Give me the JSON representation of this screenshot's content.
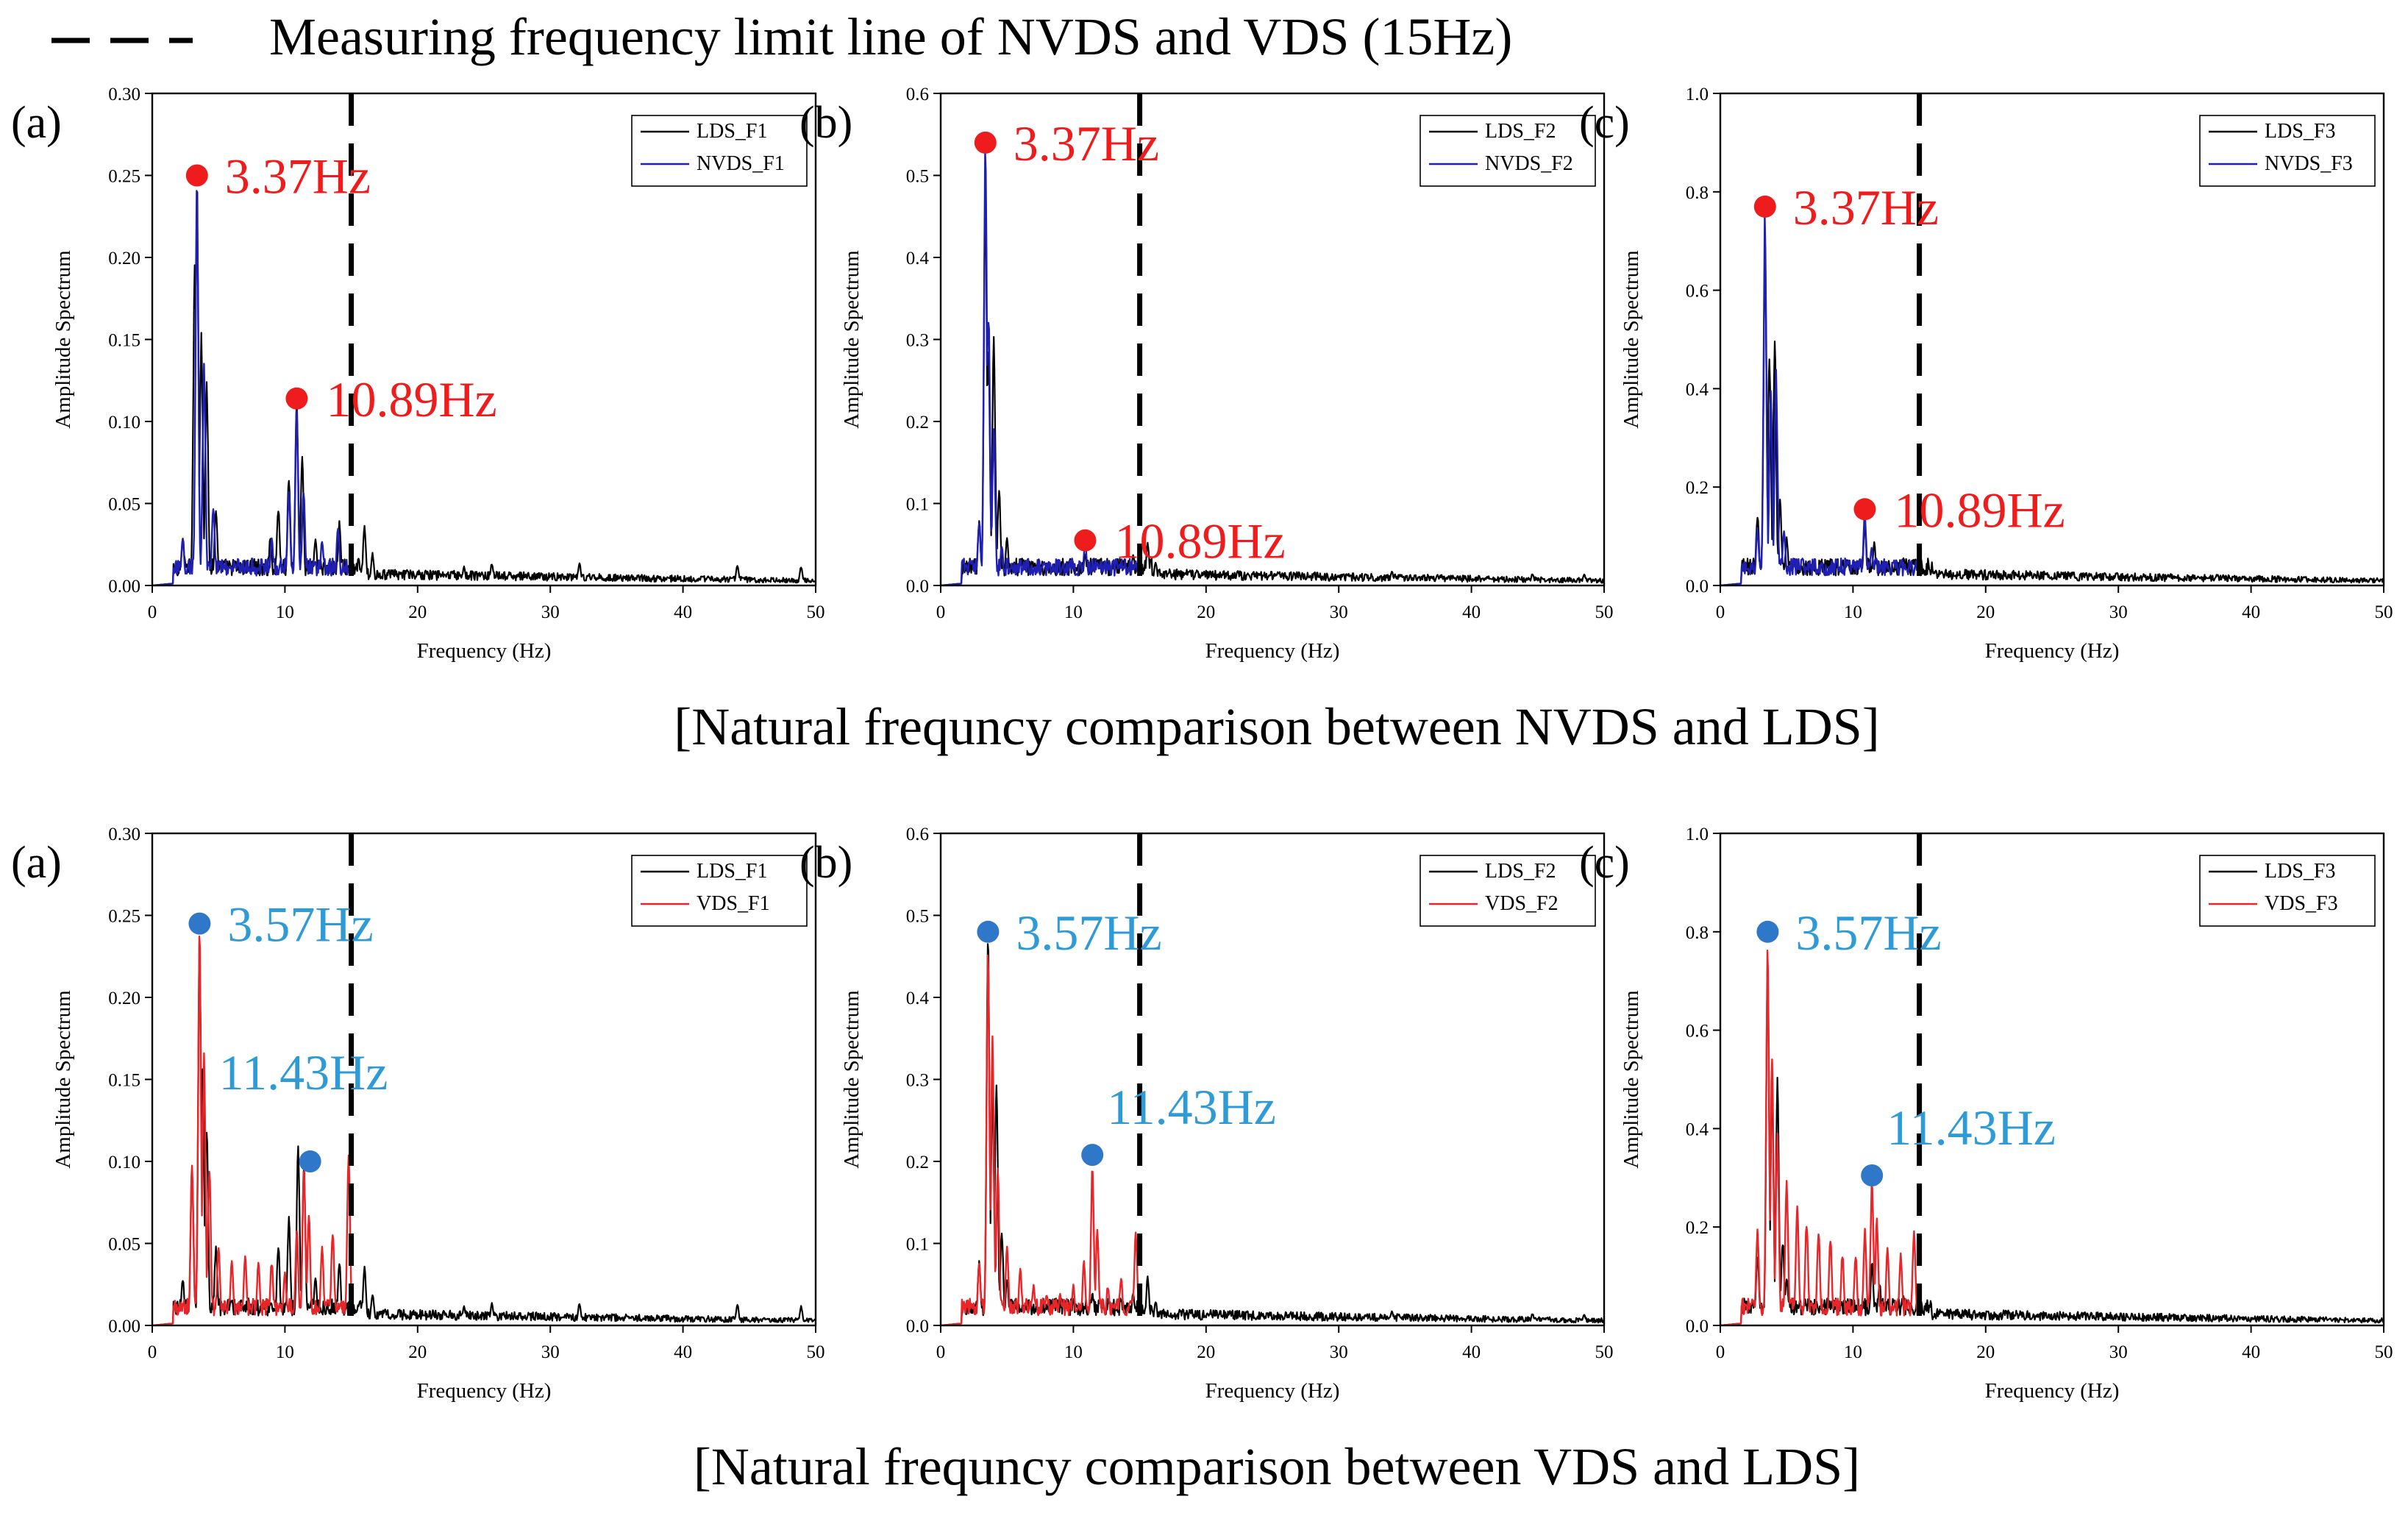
{
  "figure": {
    "legend_line_label": "Measuring frequency limit line of NVDS and VDS (15Hz)",
    "row_titles": [
      "[Natural frequncy comparison between NVDS and LDS]",
      "[Natural frequncy comparison between VDS and LDS]"
    ],
    "limit_frequency_hz": 15,
    "colors": {
      "lds": "#000000",
      "nvds": "#1f1fb4",
      "vds": "#e8262a",
      "marker_red": "#ee1c1c",
      "marker_blue": "#2f77c8",
      "text_blue": "#2e9bd6"
    }
  },
  "chart_data": [
    {
      "type": "line",
      "panel": "(a)",
      "row": 0,
      "xlabel": "Frequency (Hz)",
      "ylabel": "Amplitude Spectrum",
      "xlim": [
        0,
        50
      ],
      "ylim": [
        0,
        0.3
      ],
      "xticks": [
        "0",
        "10",
        "20",
        "30",
        "40",
        "50"
      ],
      "yticks": [
        "0.00",
        "0.05",
        "0.10",
        "0.15",
        "0.20",
        "0.25",
        "0.30"
      ],
      "series": [
        {
          "name": "LDS_F1",
          "color": "#000000",
          "extent": 50,
          "peaks": [
            [
              2.3,
              0.03
            ],
            [
              3.2,
              0.2
            ],
            [
              3.37,
              0.25
            ],
            [
              3.7,
              0.16
            ],
            [
              4.1,
              0.13
            ],
            [
              4.8,
              0.05
            ],
            [
              8.9,
              0.03
            ],
            [
              9.5,
              0.05
            ],
            [
              10.3,
              0.07
            ],
            [
              10.89,
              0.115
            ],
            [
              11.3,
              0.08
            ],
            [
              12.3,
              0.03
            ],
            [
              14.1,
              0.04
            ],
            [
              16.0,
              0.038
            ],
            [
              16.6,
              0.02
            ],
            [
              23.5,
              0.012
            ],
            [
              25.6,
              0.014
            ],
            [
              32.2,
              0.014
            ],
            [
              44.1,
              0.013
            ],
            [
              48.9,
              0.012
            ]
          ]
        },
        {
          "name": "NVDS_F1",
          "color": "#1f1fb4",
          "extent": 15,
          "peaks": [
            [
              2.3,
              0.03
            ],
            [
              3.37,
              0.245
            ],
            [
              3.9,
              0.14
            ],
            [
              4.6,
              0.05
            ],
            [
              9.0,
              0.03
            ],
            [
              10.3,
              0.06
            ],
            [
              10.89,
              0.11
            ],
            [
              11.4,
              0.06
            ],
            [
              12.8,
              0.028
            ],
            [
              14.0,
              0.038
            ]
          ]
        }
      ],
      "annotations": [
        {
          "text": "3.37Hz",
          "x": 3.37,
          "y": 0.25
        },
        {
          "text": "10.89Hz",
          "x": 10.89,
          "y": 0.114
        }
      ]
    },
    {
      "type": "line",
      "panel": "(b)",
      "row": 0,
      "xlabel": "Frequency (Hz)",
      "ylabel": "Amplitude Spectrum",
      "xlim": [
        0,
        50
      ],
      "ylim": [
        0,
        0.6
      ],
      "xticks": [
        "0",
        "10",
        "20",
        "30",
        "40",
        "50"
      ],
      "yticks": [
        "0.0",
        "0.1",
        "0.2",
        "0.3",
        "0.4",
        "0.5",
        "0.6"
      ],
      "series": [
        {
          "name": "LDS_F2",
          "color": "#000000",
          "extent": 50,
          "peaks": [
            [
              2.9,
              0.08
            ],
            [
              3.37,
              0.5
            ],
            [
              3.6,
              0.3
            ],
            [
              4.0,
              0.32
            ],
            [
              4.4,
              0.12
            ],
            [
              5.0,
              0.06
            ],
            [
              10.89,
              0.04
            ],
            [
              12.0,
              0.035
            ],
            [
              14.5,
              0.04
            ],
            [
              15.6,
              0.055
            ],
            [
              16.2,
              0.03
            ],
            [
              20.3,
              0.015
            ],
            [
              34.0,
              0.018
            ],
            [
              44.6,
              0.015
            ],
            [
              48.5,
              0.014
            ]
          ]
        },
        {
          "name": "NVDS_F2",
          "color": "#1f1fb4",
          "extent": 15,
          "peaks": [
            [
              2.9,
              0.08
            ],
            [
              3.37,
              0.54
            ],
            [
              3.6,
              0.35
            ],
            [
              4.0,
              0.2
            ],
            [
              4.6,
              0.05
            ],
            [
              10.89,
              0.055
            ],
            [
              11.8,
              0.03
            ],
            [
              13.5,
              0.025
            ]
          ]
        }
      ],
      "annotations": [
        {
          "text": "3.37Hz",
          "x": 3.37,
          "y": 0.54
        },
        {
          "text": "10.89Hz",
          "x": 10.89,
          "y": 0.055
        }
      ]
    },
    {
      "type": "line",
      "panel": "(c)",
      "row": 0,
      "xlabel": "Frequency (Hz)",
      "ylabel": "Amplitude Spectrum",
      "xlim": [
        0,
        50
      ],
      "ylim": [
        0,
        1.0
      ],
      "xticks": [
        "0",
        "10",
        "20",
        "30",
        "40",
        "50"
      ],
      "yticks": [
        "0.0",
        "0.2",
        "0.4",
        "0.6",
        "0.8",
        "1.0"
      ],
      "series": [
        {
          "name": "LDS_F3",
          "color": "#000000",
          "extent": 50,
          "peaks": [
            [
              2.8,
              0.15
            ],
            [
              3.37,
              0.7
            ],
            [
              3.7,
              0.5
            ],
            [
              4.1,
              0.52
            ],
            [
              4.5,
              0.18
            ],
            [
              5.0,
              0.1
            ],
            [
              10.89,
              0.13
            ],
            [
              11.6,
              0.09
            ],
            [
              13.8,
              0.06
            ],
            [
              16.7,
              0.03
            ],
            [
              22.7,
              0.02
            ],
            [
              31.0,
              0.02
            ],
            [
              36.0,
              0.02
            ],
            [
              44.0,
              0.018
            ],
            [
              49.0,
              0.015
            ]
          ]
        },
        {
          "name": "NVDS_F3",
          "color": "#1f1fb4",
          "extent": 15,
          "peaks": [
            [
              2.8,
              0.12
            ],
            [
              3.37,
              0.77
            ],
            [
              3.8,
              0.4
            ],
            [
              4.2,
              0.45
            ],
            [
              4.8,
              0.12
            ],
            [
              10.89,
              0.15
            ],
            [
              11.4,
              0.08
            ],
            [
              13.6,
              0.05
            ]
          ]
        }
      ],
      "annotations": [
        {
          "text": "3.37Hz",
          "x": 3.37,
          "y": 0.77
        },
        {
          "text": "10.89Hz",
          "x": 10.89,
          "y": 0.155
        }
      ]
    },
    {
      "type": "line",
      "panel": "(a)",
      "row": 1,
      "xlabel": "Frequency (Hz)",
      "ylabel": "Amplitude Spectrum",
      "xlim": [
        0,
        50
      ],
      "ylim": [
        0,
        0.3
      ],
      "xticks": [
        "0",
        "10",
        "20",
        "30",
        "40",
        "50"
      ],
      "yticks": [
        "0.00",
        "0.05",
        "0.10",
        "0.15",
        "0.20",
        "0.25",
        "0.30"
      ],
      "series": [
        {
          "name": "LDS_F1",
          "color": "#000000",
          "extent": 50,
          "peaks": [
            [
              2.3,
              0.03
            ],
            [
              3.0,
              0.1
            ],
            [
              3.57,
              0.24
            ],
            [
              3.8,
              0.16
            ],
            [
              4.1,
              0.13
            ],
            [
              4.8,
              0.05
            ],
            [
              9.5,
              0.05
            ],
            [
              10.3,
              0.07
            ],
            [
              11.0,
              0.115
            ],
            [
              11.43,
              0.1
            ],
            [
              12.3,
              0.03
            ],
            [
              14.1,
              0.04
            ],
            [
              16.0,
              0.038
            ],
            [
              16.6,
              0.02
            ],
            [
              23.5,
              0.012
            ],
            [
              25.6,
              0.014
            ],
            [
              32.2,
              0.014
            ],
            [
              44.1,
              0.013
            ],
            [
              48.9,
              0.012
            ]
          ]
        },
        {
          "name": "VDS_F1",
          "color": "#e8262a",
          "extent": 15,
          "peaks": [
            [
              3.0,
              0.1
            ],
            [
              3.57,
              0.245
            ],
            [
              3.9,
              0.17
            ],
            [
              4.3,
              0.1
            ],
            [
              5.0,
              0.05
            ],
            [
              6.0,
              0.04
            ],
            [
              7.0,
              0.045
            ],
            [
              8.0,
              0.04
            ],
            [
              9.0,
              0.04
            ],
            [
              10.0,
              0.035
            ],
            [
              10.9,
              0.06
            ],
            [
              11.43,
              0.1
            ],
            [
              11.8,
              0.07
            ],
            [
              12.8,
              0.05
            ],
            [
              13.6,
              0.06
            ],
            [
              14.8,
              0.105
            ]
          ]
        }
      ],
      "annotations": [
        {
          "text": "3.57Hz",
          "x": 3.57,
          "y": 0.245
        },
        {
          "text": "11.43Hz",
          "x": 11.9,
          "y": 0.1
        }
      ]
    },
    {
      "type": "line",
      "panel": "(b)",
      "row": 1,
      "xlabel": "Frequency (Hz)",
      "ylabel": "Amplitude Spectrum",
      "xlim": [
        0,
        50
      ],
      "ylim": [
        0,
        0.6
      ],
      "xticks": [
        "0",
        "10",
        "20",
        "30",
        "40",
        "50"
      ],
      "yticks": [
        "0.0",
        "0.1",
        "0.2",
        "0.3",
        "0.4",
        "0.5",
        "0.6"
      ],
      "series": [
        {
          "name": "LDS_F2",
          "color": "#000000",
          "extent": 50,
          "peaks": [
            [
              2.9,
              0.08
            ],
            [
              3.57,
              0.48
            ],
            [
              3.9,
              0.3
            ],
            [
              4.2,
              0.32
            ],
            [
              4.6,
              0.12
            ],
            [
              5.0,
              0.06
            ],
            [
              11.43,
              0.04
            ],
            [
              12.0,
              0.035
            ],
            [
              14.5,
              0.04
            ],
            [
              15.6,
              0.06
            ],
            [
              16.2,
              0.03
            ],
            [
              20.3,
              0.015
            ],
            [
              34.0,
              0.018
            ],
            [
              44.6,
              0.015
            ],
            [
              48.5,
              0.014
            ]
          ]
        },
        {
          "name": "VDS_F2",
          "color": "#e8262a",
          "extent": 15,
          "peaks": [
            [
              2.9,
              0.08
            ],
            [
              3.57,
              0.47
            ],
            [
              3.9,
              0.36
            ],
            [
              4.3,
              0.2
            ],
            [
              5.0,
              0.1
            ],
            [
              6.0,
              0.07
            ],
            [
              7.0,
              0.05
            ],
            [
              8.0,
              0.04
            ],
            [
              9.0,
              0.04
            ],
            [
              10.0,
              0.05
            ],
            [
              10.8,
              0.08
            ],
            [
              11.43,
              0.2
            ],
            [
              11.8,
              0.12
            ],
            [
              12.6,
              0.05
            ],
            [
              13.6,
              0.06
            ],
            [
              14.7,
              0.12
            ]
          ]
        }
      ],
      "annotations": [
        {
          "text": "3.57Hz",
          "x": 3.57,
          "y": 0.48
        },
        {
          "text": "11.43Hz",
          "x": 11.43,
          "y": 0.208
        }
      ]
    },
    {
      "type": "line",
      "panel": "(c)",
      "row": 1,
      "xlabel": "Frequency (Hz)",
      "ylabel": "Amplitude Spectrum",
      "xlim": [
        0,
        50
      ],
      "ylim": [
        0,
        1.0
      ],
      "xticks": [
        "0",
        "10",
        "20",
        "30",
        "40",
        "50"
      ],
      "yticks": [
        "0.0",
        "0.2",
        "0.4",
        "0.6",
        "0.8",
        "1.0"
      ],
      "series": [
        {
          "name": "LDS_F3",
          "color": "#000000",
          "extent": 50,
          "peaks": [
            [
              2.8,
              0.15
            ],
            [
              3.57,
              0.75
            ],
            [
              3.9,
              0.5
            ],
            [
              4.3,
              0.52
            ],
            [
              4.7,
              0.18
            ],
            [
              5.0,
              0.1
            ],
            [
              11.43,
              0.13
            ],
            [
              12.0,
              0.09
            ],
            [
              13.8,
              0.06
            ],
            [
              16.7,
              0.03
            ],
            [
              22.7,
              0.02
            ],
            [
              31.0,
              0.02
            ],
            [
              36.0,
              0.02
            ],
            [
              44.0,
              0.018
            ],
            [
              49.0,
              0.015
            ]
          ]
        },
        {
          "name": "VDS_F3",
          "color": "#e8262a",
          "extent": 15,
          "peaks": [
            [
              2.8,
              0.2
            ],
            [
              3.57,
              0.8
            ],
            [
              3.9,
              0.55
            ],
            [
              4.3,
              0.4
            ],
            [
              5.0,
              0.3
            ],
            [
              5.8,
              0.25
            ],
            [
              6.5,
              0.22
            ],
            [
              7.4,
              0.2
            ],
            [
              8.3,
              0.18
            ],
            [
              9.2,
              0.15
            ],
            [
              10.2,
              0.15
            ],
            [
              10.9,
              0.2
            ],
            [
              11.43,
              0.3
            ],
            [
              11.8,
              0.22
            ],
            [
              12.6,
              0.16
            ],
            [
              13.6,
              0.15
            ],
            [
              14.6,
              0.2
            ]
          ]
        }
      ],
      "annotations": [
        {
          "text": "3.57Hz",
          "x": 3.57,
          "y": 0.8
        },
        {
          "text": "11.43Hz",
          "x": 11.43,
          "y": 0.305
        }
      ]
    }
  ]
}
